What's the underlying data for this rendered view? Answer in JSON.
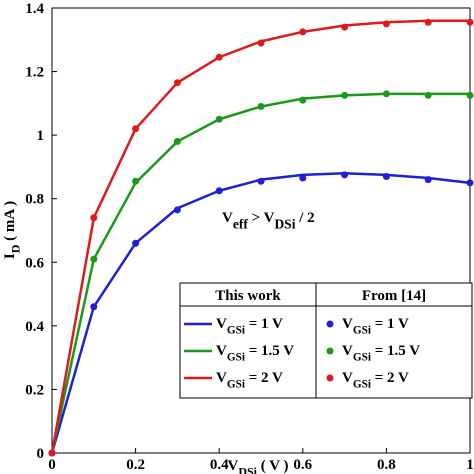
{
  "chart_data": {
    "type": "line",
    "x": [
      0,
      0.1,
      0.2,
      0.3,
      0.4,
      0.5,
      0.6,
      0.7,
      0.8,
      0.9,
      1
    ],
    "xlim": [
      0,
      1
    ],
    "xticks": [
      0,
      0.2,
      0.4,
      0.6,
      0.8,
      1
    ],
    "ylim": [
      0,
      1.4
    ],
    "yticks": [
      0,
      0.2,
      0.4,
      0.6,
      0.8,
      1,
      1.2,
      1.4
    ],
    "xlabel": [
      {
        "text": "V"
      },
      {
        "sub": "DSi"
      },
      {
        "text": "  ( V )"
      }
    ],
    "ylabel": [
      {
        "text": "I"
      },
      {
        "sub": "D"
      },
      {
        "text": "  ( mA )"
      }
    ],
    "annotation": [
      {
        "text": "V"
      },
      {
        "sub": "eff"
      },
      {
        "text": " > V"
      },
      {
        "sub": "DSi"
      },
      {
        "text": " / 2"
      }
    ],
    "legend_titles": [
      "This work",
      "From [14]"
    ],
    "series": [
      {
        "name": [
          {
            "text": "V"
          },
          {
            "sub": "GSi"
          },
          {
            "text": " = 1 V"
          }
        ],
        "style": "line",
        "color": "#1f1fd6",
        "values": [
          0,
          0.46,
          0.66,
          0.77,
          0.825,
          0.86,
          0.875,
          0.88,
          0.875,
          0.865,
          0.85
        ]
      },
      {
        "name": [
          {
            "text": "V"
          },
          {
            "sub": "GSi"
          },
          {
            "text": " = 1.5 V"
          }
        ],
        "style": "line",
        "color": "#1a9a1a",
        "values": [
          0,
          0.61,
          0.85,
          0.98,
          1.05,
          1.09,
          1.115,
          1.125,
          1.13,
          1.13,
          1.13
        ]
      },
      {
        "name": [
          {
            "text": "V"
          },
          {
            "sub": "GSi"
          },
          {
            "text": " = 2 V"
          }
        ],
        "style": "line",
        "color": "#e01a1a",
        "values": [
          0,
          0.74,
          1.02,
          1.165,
          1.245,
          1.295,
          1.325,
          1.345,
          1.355,
          1.36,
          1.36
        ]
      },
      {
        "name": [
          {
            "text": "V"
          },
          {
            "sub": "GSi"
          },
          {
            "text": " = 1 V"
          }
        ],
        "style": "marker",
        "color": "#1f1fd6",
        "values": [
          0,
          0.46,
          0.66,
          0.765,
          0.825,
          0.855,
          0.865,
          0.875,
          0.87,
          0.86,
          0.85
        ]
      },
      {
        "name": [
          {
            "text": "V"
          },
          {
            "sub": "GSi"
          },
          {
            "text": " = 1.5 V"
          }
        ],
        "style": "marker",
        "color": "#1a9a1a",
        "values": [
          0,
          0.61,
          0.855,
          0.98,
          1.05,
          1.09,
          1.11,
          1.125,
          1.13,
          1.125,
          1.125
        ]
      },
      {
        "name": [
          {
            "text": "V"
          },
          {
            "sub": "GSi"
          },
          {
            "text": " = 2 V"
          }
        ],
        "style": "marker",
        "color": "#e01a1a",
        "values": [
          0,
          0.74,
          1.02,
          1.165,
          1.245,
          1.29,
          1.325,
          1.34,
          1.35,
          1.355,
          1.355
        ]
      }
    ]
  }
}
